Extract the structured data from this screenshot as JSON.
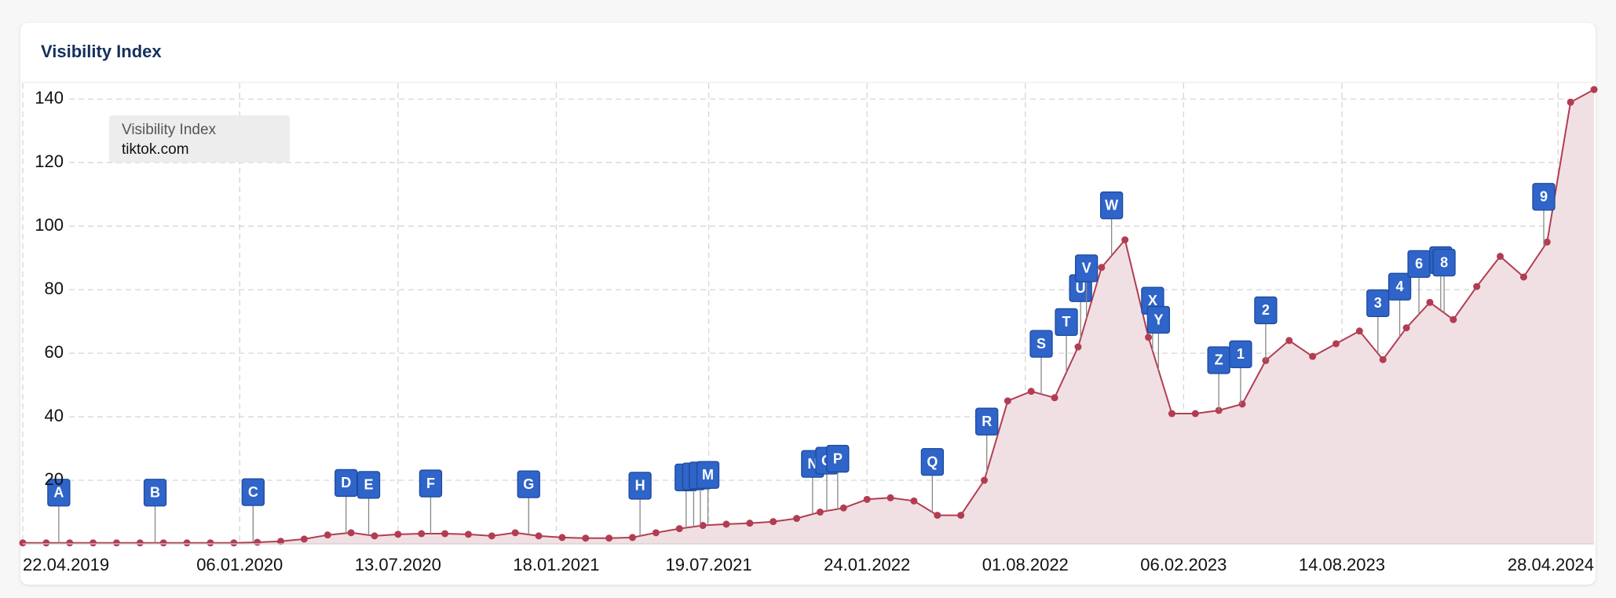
{
  "chart_data": {
    "type": "line",
    "title": "Visibility Index",
    "legend_title": "Visibility Index",
    "x": [
      "22.04.2019",
      "20.05.2019",
      "17.06.2019",
      "15.07.2019",
      "12.08.2019",
      "09.09.2019",
      "07.10.2019",
      "04.11.2019",
      "02.12.2019",
      "30.12.2019",
      "27.01.2020",
      "24.02.2020",
      "23.03.2020",
      "20.04.2020",
      "18.05.2020",
      "15.06.2020",
      "13.07.2020",
      "10.08.2020",
      "07.09.2020",
      "05.10.2020",
      "02.11.2020",
      "30.11.2020",
      "28.12.2020",
      "25.01.2021",
      "22.02.2021",
      "22.03.2021",
      "19.04.2021",
      "17.05.2021",
      "14.06.2021",
      "12.07.2021",
      "09.08.2021",
      "06.09.2021",
      "04.10.2021",
      "01.11.2021",
      "29.11.2021",
      "27.12.2021",
      "24.01.2022",
      "21.02.2022",
      "21.03.2022",
      "18.04.2022",
      "16.05.2022",
      "13.06.2022",
      "11.07.2022",
      "08.08.2022",
      "05.09.2022",
      "03.10.2022",
      "31.10.2022",
      "28.11.2022",
      "26.12.2022",
      "23.01.2023",
      "20.02.2023",
      "20.03.2023",
      "17.04.2023",
      "15.05.2023",
      "12.06.2023",
      "10.07.2023",
      "07.08.2023",
      "04.09.2023",
      "02.10.2023",
      "30.10.2023",
      "27.11.2023",
      "25.12.2023",
      "22.01.2024",
      "19.02.2024",
      "18.03.2024",
      "15.04.2024",
      "13.05.2024",
      "10.06.2024"
    ],
    "series": [
      {
        "name": "tiktok.com",
        "color": "#b23d52",
        "fill": "#f1e0e3",
        "values": [
          0.3,
          0.3,
          0.3,
          0.3,
          0.3,
          0.3,
          0.3,
          0.3,
          0.3,
          0.3,
          0.5,
          0.8,
          1.5,
          2.8,
          3.5,
          2.5,
          3,
          3.2,
          3.2,
          3,
          2.5,
          3.5,
          2.5,
          2,
          1.8,
          1.8,
          2,
          3.5,
          4.8,
          5.8,
          6.2,
          6.5,
          7,
          8,
          10,
          11.3,
          14,
          14.5,
          13.5,
          9,
          9,
          20,
          45,
          48,
          46,
          62,
          87,
          95.7,
          65,
          41,
          41,
          42,
          44,
          57.7,
          64,
          59,
          63,
          67,
          58,
          68,
          76,
          70.6,
          81,
          90.5,
          84,
          95,
          139,
          143
        ]
      }
    ],
    "xlim": [
      "22.04.2019",
      "10.06.2024"
    ],
    "xticks": [
      "22.04.2019",
      "06.01.2020",
      "13.07.2020",
      "18.01.2021",
      "19.07.2021",
      "24.01.2022",
      "01.08.2022",
      "06.02.2023",
      "14.08.2023",
      "28.04.2024"
    ],
    "ylim": [
      0,
      145
    ],
    "yticks": [
      20,
      40,
      60,
      80,
      100,
      120,
      140
    ],
    "grid": true,
    "area": true,
    "markers": true,
    "events": [
      {
        "label": "A",
        "x": "04.06.2019"
      },
      {
        "label": "B",
        "x": "27.09.2019"
      },
      {
        "label": "C",
        "x": "22.01.2020"
      },
      {
        "label": "D",
        "x": "12.05.2020"
      },
      {
        "label": "E",
        "x": "08.06.2020"
      },
      {
        "label": "F",
        "x": "21.08.2020"
      },
      {
        "label": "G",
        "x": "16.12.2020"
      },
      {
        "label": "H",
        "x": "28.04.2021"
      },
      {
        "label": "J",
        "x": "22.06.2021"
      },
      {
        "label": "K",
        "x": "01.07.2021"
      },
      {
        "label": "L",
        "x": "09.07.2021"
      },
      {
        "label": "M",
        "x": "18.07.2021"
      },
      {
        "label": "N",
        "x": "20.11.2021"
      },
      {
        "label": "O",
        "x": "07.12.2021"
      },
      {
        "label": "P",
        "x": "20.12.2021"
      },
      {
        "label": "Q",
        "x": "12.04.2022"
      },
      {
        "label": "R",
        "x": "16.06.2022"
      },
      {
        "label": "S",
        "x": "20.08.2022"
      },
      {
        "label": "T",
        "x": "19.09.2022"
      },
      {
        "label": "U",
        "x": "06.10.2022"
      },
      {
        "label": "V",
        "x": "13.10.2022"
      },
      {
        "label": "W",
        "x": "12.11.2022"
      },
      {
        "label": "X",
        "x": "31.12.2022"
      },
      {
        "label": "Y",
        "x": "07.01.2023"
      },
      {
        "label": "Z",
        "x": "20.03.2023"
      },
      {
        "label": "1",
        "x": "15.04.2023"
      },
      {
        "label": "2",
        "x": "15.05.2023"
      },
      {
        "label": "3",
        "x": "26.09.2023"
      },
      {
        "label": "4",
        "x": "22.10.2023"
      },
      {
        "label": "6",
        "x": "14.11.2023"
      },
      {
        "label": "7",
        "x": "10.12.2023"
      },
      {
        "label": "8",
        "x": "14.12.2023"
      },
      {
        "label": "9",
        "x": "11.04.2024"
      }
    ]
  }
}
